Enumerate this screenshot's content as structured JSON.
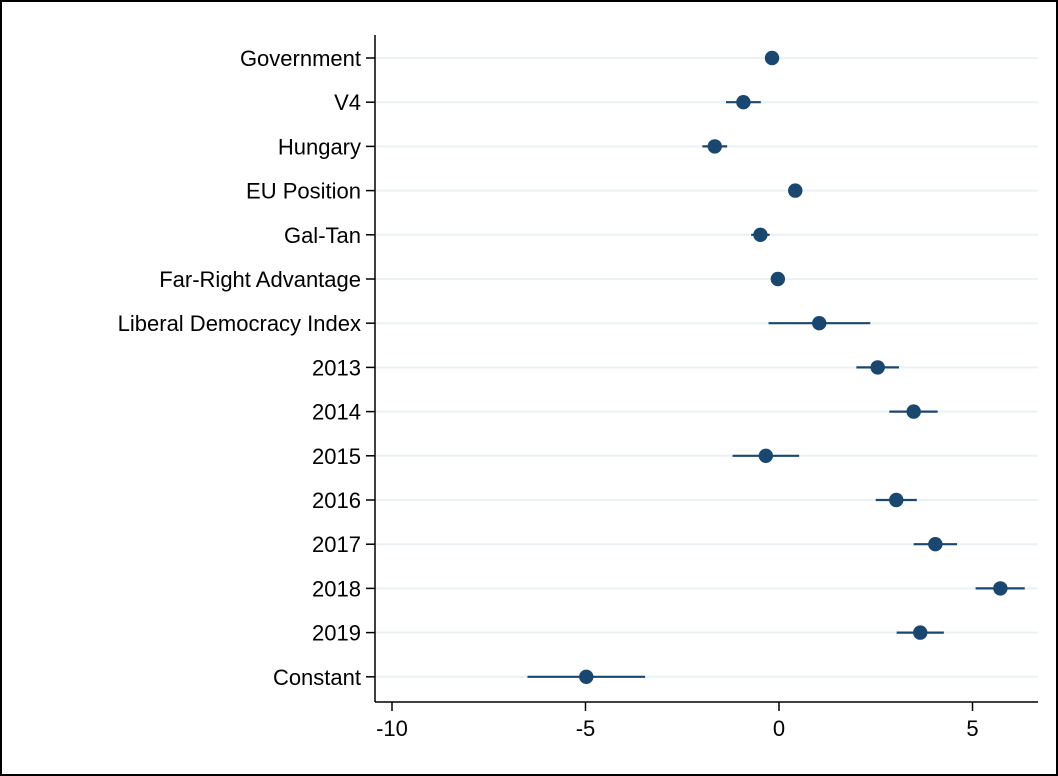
{
  "chart_data": {
    "type": "scatter",
    "subtype": "coefficient-plot",
    "title": "",
    "xlabel": "",
    "ylabel": "",
    "xlim": [
      -10.5,
      6.6
    ],
    "xticks": [
      -10,
      -5,
      0,
      5
    ],
    "xtick_labels": [
      "-10",
      "-5",
      "0",
      "5"
    ],
    "grid": "horizontal",
    "legend": "none",
    "colors": {
      "marker": "#1a476f",
      "grid": "#eaf2f3",
      "frame": "#000000"
    },
    "categories": [
      "Government",
      "V4",
      "Hungary",
      "EU Position",
      "Gal-Tan",
      "Far-Right Advantage",
      "Liberal Democracy Index",
      "2013",
      "2014",
      "2015",
      "2016",
      "2017",
      "2018",
      "2019",
      "Constant"
    ],
    "series": [
      {
        "estimate": [
          -0.18,
          -0.92,
          -1.66,
          0.42,
          -0.48,
          -0.03,
          1.04,
          2.55,
          3.48,
          -0.34,
          3.03,
          4.04,
          5.72,
          3.65,
          -4.98
        ],
        "ci_low": [
          -0.35,
          -1.37,
          -1.98,
          0.32,
          -0.72,
          -0.1,
          -0.27,
          2.0,
          2.85,
          -1.2,
          2.5,
          3.48,
          5.08,
          3.04,
          -6.5
        ],
        "ci_high": [
          -0.02,
          -0.47,
          -1.34,
          0.52,
          -0.24,
          0.04,
          2.36,
          3.1,
          4.1,
          0.52,
          3.56,
          4.6,
          6.35,
          4.26,
          -3.46
        ]
      }
    ]
  }
}
